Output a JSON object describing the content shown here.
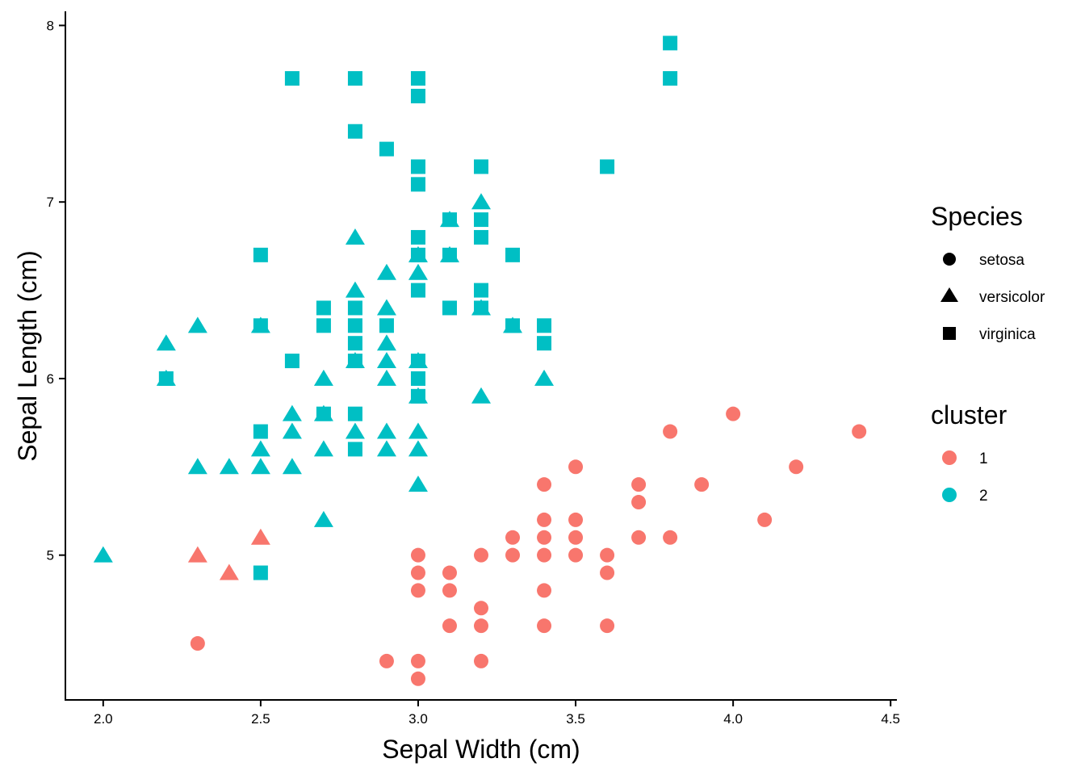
{
  "chart_data": {
    "type": "scatter",
    "title": "",
    "xlabel": "Sepal Width (cm)",
    "ylabel": "Sepal Length (cm)",
    "xlim": [
      1.88,
      4.52
    ],
    "ylim": [
      4.18,
      8.08
    ],
    "xticks": [
      2.0,
      2.5,
      3.0,
      3.5,
      4.0,
      4.5
    ],
    "xtick_labels": [
      "2.0",
      "2.5",
      "3.0",
      "3.5",
      "4.0",
      "4.5"
    ],
    "yticks": [
      5,
      6,
      7,
      8
    ],
    "ytick_labels": [
      "5",
      "6",
      "7",
      "8"
    ],
    "grid": false,
    "legend_position": "right",
    "legends": {
      "species": {
        "title": "Species",
        "items": [
          {
            "label": "setosa",
            "shape": "circle"
          },
          {
            "label": "versicolor",
            "shape": "triangle"
          },
          {
            "label": "virginica",
            "shape": "square"
          }
        ]
      },
      "cluster": {
        "title": "cluster",
        "items": [
          {
            "label": "1",
            "color": "#F8766D"
          },
          {
            "label": "2",
            "color": "#00BFC4"
          }
        ]
      }
    },
    "colors": {
      "1": "#F8766D",
      "2": "#00BFC4",
      "legend_shape": "#000000"
    },
    "series": [
      {
        "name": "setosa",
        "shape": "circle",
        "cluster": "1",
        "points": [
          [
            3.0,
            5.0
          ],
          [
            3.0,
            4.9
          ],
          [
            3.0,
            4.8
          ],
          [
            3.0,
            4.4
          ],
          [
            3.0,
            4.3
          ],
          [
            3.1,
            4.9
          ],
          [
            3.1,
            4.8
          ],
          [
            3.1,
            4.6
          ],
          [
            3.2,
            5.0
          ],
          [
            3.2,
            4.7
          ],
          [
            3.2,
            4.6
          ],
          [
            3.2,
            4.4
          ],
          [
            2.9,
            4.4
          ],
          [
            2.3,
            4.5
          ],
          [
            3.3,
            5.1
          ],
          [
            3.3,
            5.0
          ],
          [
            3.4,
            5.4
          ],
          [
            3.4,
            5.2
          ],
          [
            3.4,
            5.1
          ],
          [
            3.4,
            5.0
          ],
          [
            3.4,
            4.8
          ],
          [
            3.4,
            4.6
          ],
          [
            3.5,
            5.5
          ],
          [
            3.5,
            5.2
          ],
          [
            3.5,
            5.1
          ],
          [
            3.5,
            5.0
          ],
          [
            3.6,
            5.0
          ],
          [
            3.6,
            4.9
          ],
          [
            3.6,
            4.6
          ],
          [
            3.7,
            5.4
          ],
          [
            3.7,
            5.3
          ],
          [
            3.7,
            5.1
          ],
          [
            3.8,
            5.7
          ],
          [
            3.8,
            5.1
          ],
          [
            3.9,
            5.4
          ],
          [
            4.0,
            5.8
          ],
          [
            4.1,
            5.2
          ],
          [
            4.2,
            5.5
          ],
          [
            4.4,
            5.7
          ]
        ]
      },
      {
        "name": "versicolor",
        "shape": "triangle",
        "cluster": "1",
        "points": [
          [
            2.3,
            5.0
          ],
          [
            2.4,
            4.9
          ],
          [
            2.5,
            5.1
          ]
        ]
      },
      {
        "name": "versicolor",
        "shape": "triangle",
        "cluster": "2",
        "points": [
          [
            2.0,
            5.0
          ],
          [
            2.2,
            6.2
          ],
          [
            2.2,
            6.0
          ],
          [
            2.3,
            6.3
          ],
          [
            2.3,
            5.5
          ],
          [
            2.4,
            5.5
          ],
          [
            2.5,
            6.3
          ],
          [
            2.5,
            5.6
          ],
          [
            2.5,
            5.5
          ],
          [
            2.6,
            5.8
          ],
          [
            2.6,
            5.7
          ],
          [
            2.6,
            5.5
          ],
          [
            2.7,
            6.0
          ],
          [
            2.7,
            5.8
          ],
          [
            2.7,
            5.6
          ],
          [
            2.7,
            5.2
          ],
          [
            2.8,
            6.8
          ],
          [
            2.8,
            6.5
          ],
          [
            2.8,
            6.1
          ],
          [
            2.8,
            5.7
          ],
          [
            2.9,
            6.6
          ],
          [
            2.9,
            6.4
          ],
          [
            2.9,
            6.2
          ],
          [
            2.9,
            6.1
          ],
          [
            2.9,
            6.0
          ],
          [
            2.9,
            5.7
          ],
          [
            2.9,
            5.6
          ],
          [
            3.0,
            6.7
          ],
          [
            3.0,
            6.6
          ],
          [
            3.0,
            6.1
          ],
          [
            3.0,
            5.9
          ],
          [
            3.0,
            5.7
          ],
          [
            3.0,
            5.6
          ],
          [
            3.0,
            5.4
          ],
          [
            3.1,
            6.9
          ],
          [
            3.1,
            6.7
          ],
          [
            3.2,
            7.0
          ],
          [
            3.2,
            6.4
          ],
          [
            3.2,
            5.9
          ],
          [
            3.3,
            6.3
          ],
          [
            3.4,
            6.0
          ]
        ]
      },
      {
        "name": "virginica",
        "shape": "square",
        "cluster": "2",
        "points": [
          [
            2.2,
            6.0
          ],
          [
            2.5,
            6.7
          ],
          [
            2.5,
            6.3
          ],
          [
            2.5,
            5.7
          ],
          [
            2.5,
            4.9
          ],
          [
            2.6,
            7.7
          ],
          [
            2.6,
            6.1
          ],
          [
            2.7,
            6.4
          ],
          [
            2.7,
            6.3
          ],
          [
            2.7,
            5.8
          ],
          [
            2.8,
            7.7
          ],
          [
            2.8,
            7.4
          ],
          [
            2.8,
            6.4
          ],
          [
            2.8,
            6.3
          ],
          [
            2.8,
            6.2
          ],
          [
            2.8,
            6.1
          ],
          [
            2.8,
            5.8
          ],
          [
            2.8,
            5.6
          ],
          [
            2.9,
            7.3
          ],
          [
            2.9,
            6.3
          ],
          [
            3.0,
            7.7
          ],
          [
            3.0,
            7.6
          ],
          [
            3.0,
            7.2
          ],
          [
            3.0,
            7.1
          ],
          [
            3.0,
            6.8
          ],
          [
            3.0,
            6.7
          ],
          [
            3.0,
            6.5
          ],
          [
            3.0,
            6.1
          ],
          [
            3.0,
            6.0
          ],
          [
            3.0,
            5.9
          ],
          [
            3.1,
            6.9
          ],
          [
            3.1,
            6.7
          ],
          [
            3.1,
            6.4
          ],
          [
            3.2,
            7.2
          ],
          [
            3.2,
            6.9
          ],
          [
            3.2,
            6.8
          ],
          [
            3.2,
            6.5
          ],
          [
            3.2,
            6.4
          ],
          [
            3.3,
            6.7
          ],
          [
            3.3,
            6.3
          ],
          [
            3.4,
            6.3
          ],
          [
            3.4,
            6.2
          ],
          [
            3.6,
            7.2
          ],
          [
            3.8,
            7.9
          ],
          [
            3.8,
            7.7
          ]
        ]
      }
    ]
  }
}
